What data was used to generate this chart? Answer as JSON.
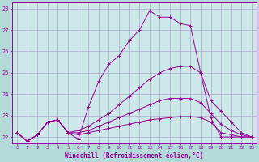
{
  "xlabel": "Windchill (Refroidissement éolien,°C)",
  "bg_color": "#b3d9d9",
  "plot_bg_color": "#cce8e8",
  "line_color": "#990099",
  "grid_color": "#aaaacc",
  "ylim": [
    21.7,
    28.3
  ],
  "xlim": [
    -0.5,
    23.5
  ],
  "yticks": [
    22,
    23,
    24,
    25,
    26,
    27,
    28
  ],
  "xticks": [
    0,
    1,
    2,
    3,
    4,
    5,
    6,
    7,
    8,
    9,
    10,
    11,
    12,
    13,
    14,
    15,
    16,
    17,
    18,
    19,
    20,
    21,
    22,
    23
  ],
  "lines": [
    {
      "x": [
        0,
        1,
        2,
        3,
        4,
        5,
        6,
        7,
        8,
        9,
        10,
        11,
        12,
        13,
        14,
        15,
        16,
        17,
        18,
        19,
        20,
        21,
        22,
        23
      ],
      "y": [
        22.2,
        21.8,
        22.1,
        22.7,
        22.8,
        22.2,
        21.9,
        23.4,
        24.6,
        25.4,
        25.8,
        26.5,
        27.0,
        27.9,
        27.6,
        27.6,
        27.3,
        27.2,
        25.0,
        22.9,
        22.0,
        22.0,
        22.0,
        22.0
      ]
    },
    {
      "x": [
        0,
        1,
        2,
        3,
        4,
        5,
        6,
        7,
        8,
        9,
        10,
        11,
        12,
        13,
        14,
        15,
        16,
        17,
        18,
        19,
        20,
        21,
        22,
        23
      ],
      "y": [
        22.2,
        21.8,
        22.1,
        22.7,
        22.8,
        22.2,
        22.3,
        22.5,
        22.8,
        23.1,
        23.5,
        23.9,
        24.3,
        24.7,
        25.0,
        25.2,
        25.3,
        25.3,
        25.0,
        23.7,
        23.2,
        22.7,
        22.2,
        22.0
      ]
    },
    {
      "x": [
        0,
        1,
        2,
        3,
        4,
        5,
        6,
        7,
        8,
        9,
        10,
        11,
        12,
        13,
        14,
        15,
        16,
        17,
        18,
        19,
        20,
        21,
        22,
        23
      ],
      "y": [
        22.2,
        21.8,
        22.1,
        22.7,
        22.8,
        22.2,
        22.2,
        22.3,
        22.5,
        22.7,
        22.9,
        23.1,
        23.3,
        23.5,
        23.7,
        23.8,
        23.8,
        23.8,
        23.6,
        23.1,
        22.6,
        22.3,
        22.1,
        22.0
      ]
    },
    {
      "x": [
        0,
        1,
        2,
        3,
        4,
        5,
        6,
        7,
        8,
        9,
        10,
        11,
        12,
        13,
        14,
        15,
        16,
        17,
        18,
        19,
        20,
        21,
        22,
        23
      ],
      "y": [
        22.2,
        21.8,
        22.1,
        22.7,
        22.8,
        22.2,
        22.1,
        22.2,
        22.3,
        22.4,
        22.5,
        22.6,
        22.7,
        22.8,
        22.85,
        22.9,
        22.95,
        22.95,
        22.9,
        22.7,
        22.2,
        22.1,
        22.0,
        22.0
      ]
    }
  ]
}
